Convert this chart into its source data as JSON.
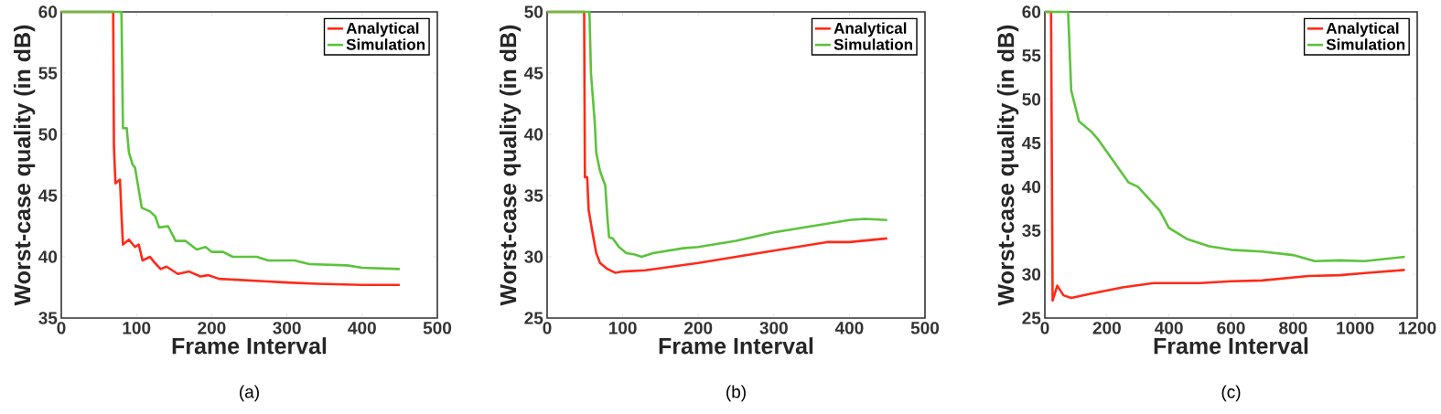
{
  "chart_data": [
    {
      "type": "line",
      "xlabel": "Frame Interval",
      "ylabel": "Worst-case quality (in dB)",
      "xlim": [
        0,
        500
      ],
      "ylim": [
        35,
        60
      ],
      "xticks": [
        0,
        100,
        200,
        300,
        400,
        500
      ],
      "yticks": [
        35,
        40,
        45,
        50,
        55,
        60
      ],
      "legend": "top right",
      "annotations": [
        "(a)"
      ],
      "series": [
        {
          "name": "Analytical",
          "color": "#ff2a1a",
          "x": [
            0,
            69,
            70,
            72,
            78,
            80,
            82,
            90,
            98,
            103,
            108,
            118,
            123,
            132,
            140,
            155,
            170,
            185,
            195,
            210,
            240,
            270,
            300,
            340,
            400,
            450
          ],
          "values": [
            60,
            60,
            49,
            46,
            46.3,
            43.5,
            41,
            41.4,
            40.8,
            41,
            39.7,
            40,
            39.6,
            39,
            39.2,
            38.6,
            38.8,
            38.4,
            38.5,
            38.2,
            38.1,
            38,
            37.9,
            37.8,
            37.7,
            37.7
          ]
        },
        {
          "name": "Simulation",
          "color": "#5cc33c",
          "x": [
            0,
            80,
            82,
            87,
            90,
            95,
            98,
            107,
            118,
            125,
            130,
            142,
            152,
            165,
            180,
            192,
            200,
            215,
            228,
            260,
            275,
            310,
            330,
            380,
            400,
            450
          ],
          "values": [
            60,
            60,
            50.5,
            50.5,
            48.5,
            47.5,
            47.3,
            44,
            43.7,
            43.3,
            42.4,
            42.5,
            41.3,
            41.3,
            40.6,
            40.8,
            40.4,
            40.4,
            40,
            40,
            39.7,
            39.7,
            39.4,
            39.3,
            39.1,
            39
          ]
        }
      ]
    },
    {
      "type": "line",
      "xlabel": "Frame Interval",
      "ylabel": "Worst-case quality (in dB)",
      "xlim": [
        0,
        500
      ],
      "ylim": [
        25,
        50
      ],
      "xticks": [
        0,
        100,
        200,
        300,
        400,
        500
      ],
      "yticks": [
        25,
        30,
        35,
        40,
        45,
        50
      ],
      "legend": "top right",
      "annotations": [
        "(b)"
      ],
      "series": [
        {
          "name": "Analytical",
          "color": "#ff2a1a",
          "x": [
            0,
            49,
            50,
            53,
            55,
            60,
            65,
            70,
            80,
            90,
            100,
            130,
            200,
            300,
            370,
            400,
            450
          ],
          "values": [
            50,
            50,
            36.5,
            36.5,
            33.8,
            32,
            30.3,
            29.5,
            29,
            28.7,
            28.8,
            28.9,
            29.5,
            30.5,
            31.2,
            31.2,
            31.5
          ]
        },
        {
          "name": "Simulation",
          "color": "#5cc33c",
          "x": [
            0,
            56,
            58,
            63,
            65,
            70,
            77,
            80,
            82,
            87,
            95,
            105,
            115,
            125,
            140,
            180,
            200,
            250,
            300,
            350,
            400,
            420,
            450
          ],
          "values": [
            50,
            50,
            45,
            41,
            38.5,
            37,
            35.8,
            33,
            31.6,
            31.5,
            30.8,
            30.3,
            30.2,
            30,
            30.3,
            30.7,
            30.8,
            31.3,
            32,
            32.5,
            33,
            33.1,
            33
          ]
        }
      ]
    },
    {
      "type": "line",
      "xlabel": "Frame Interval",
      "ylabel": "Worst-case quality (in dB)",
      "xlim": [
        0,
        1200
      ],
      "ylim": [
        25,
        60
      ],
      "xticks": [
        0,
        200,
        400,
        600,
        800,
        1000,
        1200
      ],
      "yticks": [
        25,
        30,
        35,
        40,
        45,
        50,
        55,
        60
      ],
      "legend": "top right",
      "annotations": [
        "(c)"
      ],
      "series": [
        {
          "name": "Analytical",
          "color": "#ff2a1a",
          "x": [
            0,
            20,
            25,
            40,
            60,
            85,
            150,
            250,
            350,
            500,
            600,
            700,
            850,
            950,
            1050,
            1160
          ],
          "values": [
            60,
            60,
            27,
            28.7,
            27.6,
            27.3,
            27.8,
            28.5,
            29,
            29,
            29.2,
            29.3,
            29.8,
            29.9,
            30.2,
            30.5
          ]
        },
        {
          "name": "Simulation",
          "color": "#5cc33c",
          "x": [
            0,
            75,
            85,
            110,
            150,
            170,
            220,
            270,
            300,
            370,
            400,
            460,
            530,
            600,
            700,
            800,
            870,
            950,
            1030,
            1160
          ],
          "values": [
            60,
            60,
            51,
            47.5,
            46.3,
            45.5,
            43,
            40.5,
            40,
            37.3,
            35.3,
            34,
            33.2,
            32.8,
            32.6,
            32.2,
            31.5,
            31.6,
            31.5,
            32
          ]
        }
      ]
    }
  ]
}
